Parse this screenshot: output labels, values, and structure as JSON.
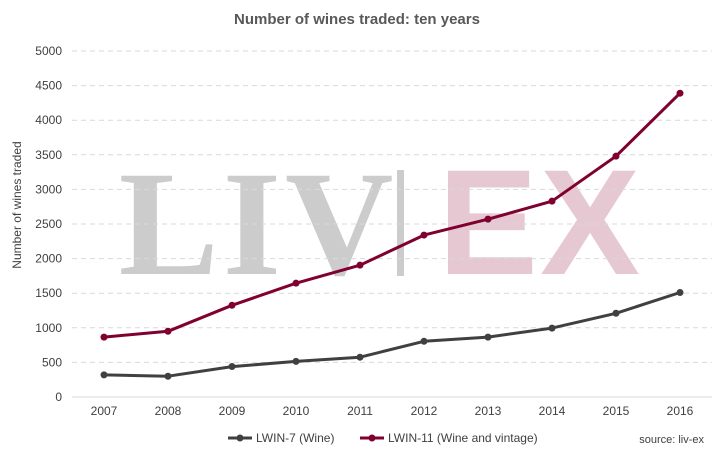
{
  "chart_data": {
    "type": "line",
    "title": "Number of wines traded: ten years",
    "xlabel": "",
    "ylabel": "Number of wines traded",
    "categories": [
      "2007",
      "2008",
      "2009",
      "2010",
      "2011",
      "2012",
      "2013",
      "2014",
      "2015",
      "2016"
    ],
    "ylim": [
      0,
      5000
    ],
    "yticks": [
      0,
      500,
      1000,
      1500,
      2000,
      2500,
      3000,
      3500,
      4000,
      4500,
      5000
    ],
    "grid": "horizontal dashed",
    "legend_position": "bottom",
    "series": [
      {
        "name": "LWIN-7 (Wine)",
        "color": "#404040",
        "values": [
          320,
          300,
          440,
          515,
          575,
          805,
          865,
          995,
          1210,
          1510
        ]
      },
      {
        "name": "LWIN-11 (Wine and vintage)",
        "color": "#800030",
        "values": [
          865,
          950,
          1325,
          1645,
          1905,
          2340,
          2570,
          2830,
          3480,
          4390
        ]
      }
    ],
    "watermark": {
      "left": "LIV",
      "right": "EX",
      "left_color": "#cccccc",
      "right_color": "#e6c8d2"
    },
    "source": "source: liv-ex"
  }
}
